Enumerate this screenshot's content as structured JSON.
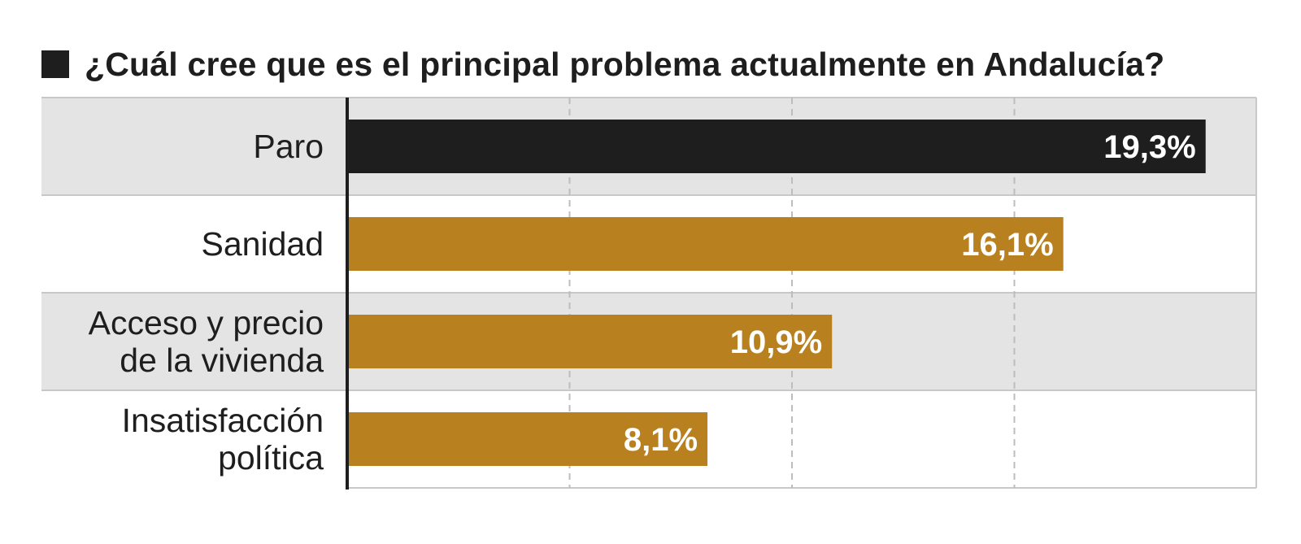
{
  "chart_data": {
    "type": "bar",
    "orientation": "horizontal",
    "title": "¿Cuál cree que es el principal problema actualmente en Andalucía?",
    "categories": [
      [
        "Paro"
      ],
      [
        "Sanidad"
      ],
      [
        "Acceso y precio",
        "de la vivienda"
      ],
      [
        "Insatisfacción",
        "política"
      ]
    ],
    "values": [
      19.3,
      16.1,
      10.9,
      8.1
    ],
    "value_labels": [
      "19,3%",
      "16,1%",
      "10,9%",
      "8,1%"
    ],
    "xlim": [
      0,
      20
    ],
    "grid": true,
    "bar_colors": [
      "#1e1e1e",
      "#b8801f",
      "#b8801f",
      "#b8801f"
    ],
    "row_band_color": "#e4e4e4"
  }
}
